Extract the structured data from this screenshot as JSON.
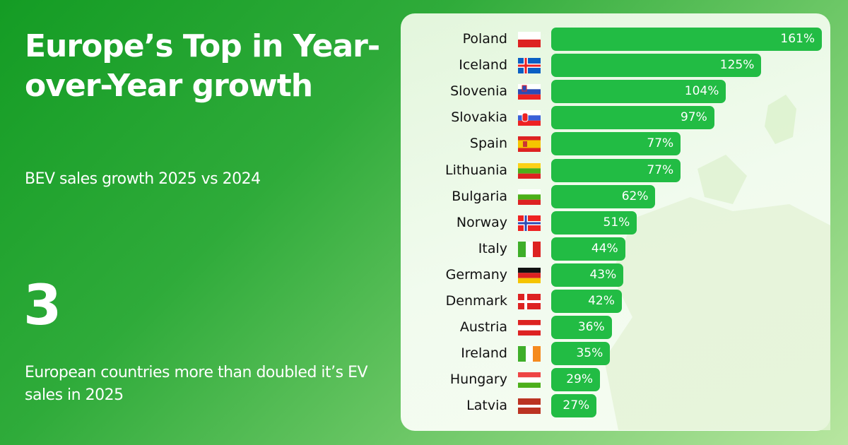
{
  "header": {
    "title": "Europe’s Top in Year-over-Year growth",
    "subtitle": "BEV sales growth 2025 vs 2024"
  },
  "stat": {
    "number": "3",
    "text": "European countries more than doubled it’s EV sales in 2025"
  },
  "colors": {
    "bar": "#22bc44",
    "background_start": "#149c24",
    "background_end": "#b8e6a0"
  },
  "chart_data": {
    "type": "bar",
    "orientation": "horizontal",
    "xlim": [
      0,
      161
    ],
    "grid": false,
    "categories": [
      "Poland",
      "Iceland",
      "Slovenia",
      "Slovakia",
      "Spain",
      "Lithuania",
      "Bulgaria",
      "Norway",
      "Italy",
      "Germany",
      "Denmark",
      "Austria",
      "Ireland",
      "Hungary",
      "Latvia"
    ],
    "values": [
      161,
      125,
      104,
      97,
      77,
      77,
      62,
      51,
      44,
      43,
      42,
      36,
      35,
      29,
      27
    ],
    "labels": [
      "161%",
      "125%",
      "104%",
      "97%",
      "77%",
      "77%",
      "62%",
      "51%",
      "44%",
      "43%",
      "42%",
      "36%",
      "35%",
      "29%",
      "27%"
    ]
  }
}
